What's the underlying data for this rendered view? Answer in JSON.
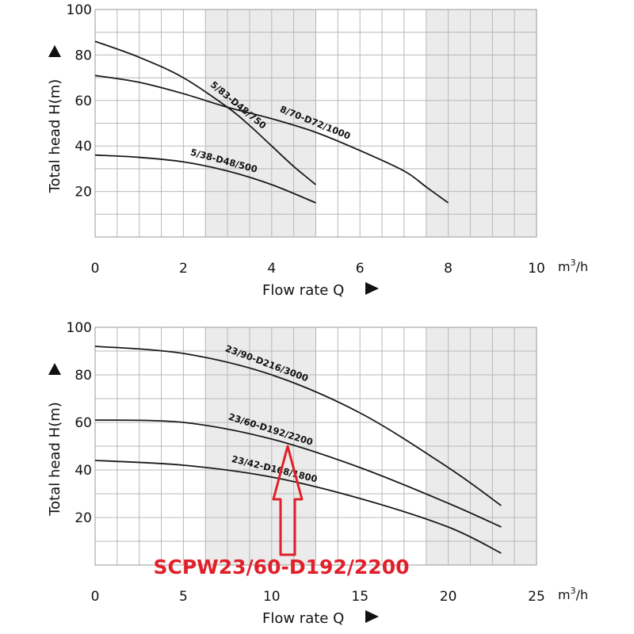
{
  "chart_data": [
    {
      "type": "line",
      "xlabel": "Flow rate Q",
      "ylabel": "Total head H(m)",
      "unit_main": "m",
      "unit_sup": "3",
      "unit_tail": "/h",
      "xlim": [
        0,
        10
      ],
      "ylim": [
        0,
        100
      ],
      "x_ticks": [
        0,
        2,
        4,
        6,
        8,
        10
      ],
      "y_ticks": [
        20,
        40,
        60,
        80,
        100
      ],
      "shaded_x_ranges": [
        [
          2.5,
          5
        ],
        [
          7.5,
          10
        ]
      ],
      "series": [
        {
          "name": "5/83-D48/750",
          "x": [
            0,
            1,
            2,
            3,
            3.5,
            4,
            4.5,
            5
          ],
          "y": [
            86,
            79,
            70,
            57,
            49,
            40,
            31,
            23
          ]
        },
        {
          "name": "8/70-D72/1000",
          "x": [
            0,
            1,
            2,
            3,
            4,
            5,
            6,
            7,
            7.5,
            8
          ],
          "y": [
            71,
            68,
            63,
            57,
            52,
            46,
            38,
            29,
            22,
            15
          ]
        },
        {
          "name": "5/38-D48/500",
          "x": [
            0,
            1,
            2,
            3,
            4,
            5
          ],
          "y": [
            36,
            35,
            33,
            29,
            23,
            15
          ]
        }
      ]
    },
    {
      "type": "line",
      "xlabel": "Flow rate Q",
      "ylabel": "Total head H(m)",
      "unit_main": "m",
      "unit_sup": "3",
      "unit_tail": "/h",
      "xlim": [
        0,
        25
      ],
      "ylim": [
        0,
        100
      ],
      "x_ticks": [
        0,
        5,
        10,
        15,
        20,
        25
      ],
      "y_ticks": [
        20,
        40,
        60,
        80,
        100
      ],
      "shaded_x_ranges": [
        [
          6.25,
          12.5
        ],
        [
          18.75,
          25
        ]
      ],
      "series": [
        {
          "name": "23/90-D216/3000",
          "x": [
            0,
            5,
            10,
            15,
            20,
            23
          ],
          "y": [
            92,
            89,
            80,
            64,
            41,
            25
          ]
        },
        {
          "name": "23/60-D192/2200",
          "x": [
            0,
            5,
            10,
            15,
            20,
            23
          ],
          "y": [
            61,
            60,
            53,
            41,
            26,
            16
          ]
        },
        {
          "name": "23/42-D168/1800",
          "x": [
            0,
            5,
            10,
            15,
            20,
            23
          ],
          "y": [
            44,
            42,
            37,
            28,
            16,
            5
          ]
        }
      ],
      "annotation": {
        "text": "SCPW23/60-D192/2200",
        "arrow_target": "23/60-D192/2200"
      }
    }
  ],
  "style": {
    "grid_color": "#b8b8b8",
    "shade_color": "#ebebeb",
    "curve_color": "#1a1a1a",
    "callout_color": "#e0202a"
  }
}
